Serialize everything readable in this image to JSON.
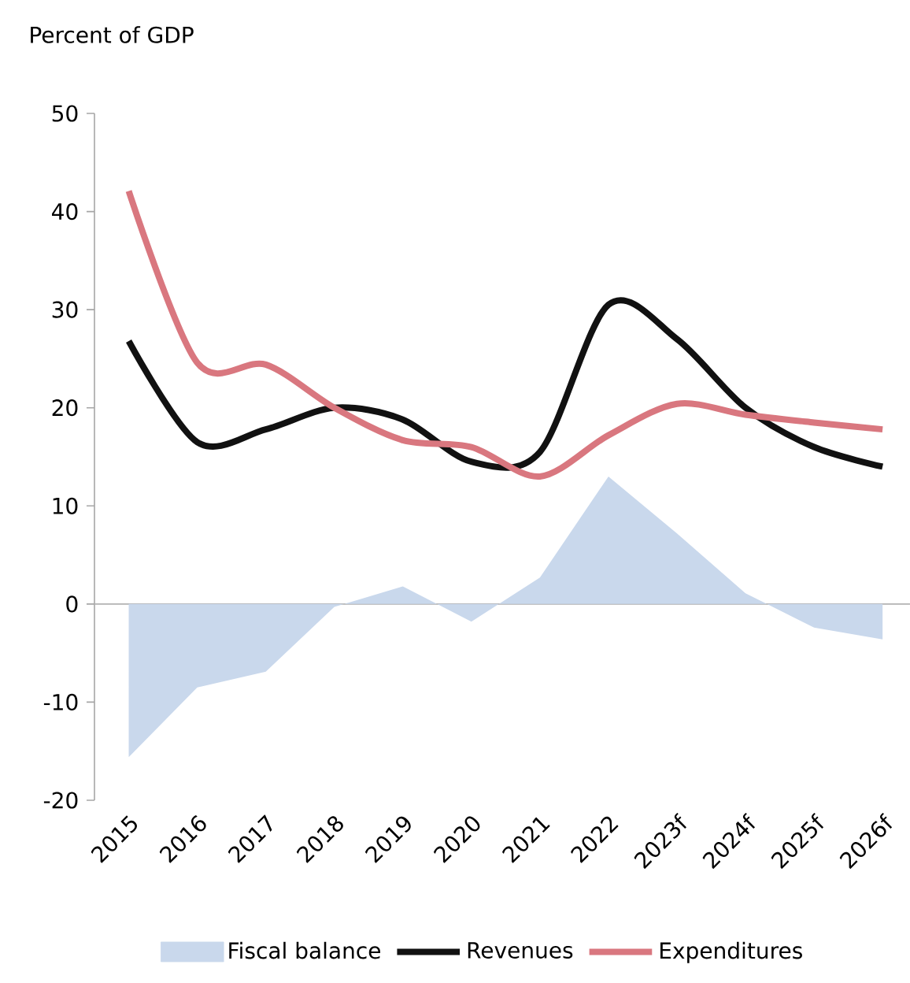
{
  "chart_data": {
    "type": "line",
    "ylabel": "Percent of GDP",
    "categories": [
      "2015",
      "2016",
      "2017",
      "2018",
      "2019",
      "2020",
      "2021",
      "2022",
      "2023f",
      "2024f",
      "2025f",
      "2026f"
    ],
    "series": [
      {
        "name": "Fiscal balance",
        "type": "area",
        "color": "#c9d8ec",
        "values": [
          -15.6,
          -8.5,
          -6.9,
          -0.3,
          1.8,
          -1.8,
          2.7,
          13,
          7.2,
          1.1,
          -2.4,
          -3.6
        ]
      },
      {
        "name": "Revenues",
        "color": "#111111",
        "values": [
          26.8,
          16.5,
          17.8,
          20,
          18.8,
          14.5,
          15.5,
          30.5,
          27,
          20,
          16,
          14
        ]
      },
      {
        "name": "Expenditures",
        "color": "#d9777f",
        "values": [
          42.1,
          24.6,
          24.4,
          20,
          16.7,
          16,
          13,
          17.2,
          20.4,
          19.3,
          18.5,
          17.8
        ]
      }
    ],
    "ylim": [
      -20,
      50
    ],
    "yticks": [
      -20,
      -10,
      0,
      10,
      20,
      30,
      40,
      50
    ],
    "legend": "bottom"
  }
}
